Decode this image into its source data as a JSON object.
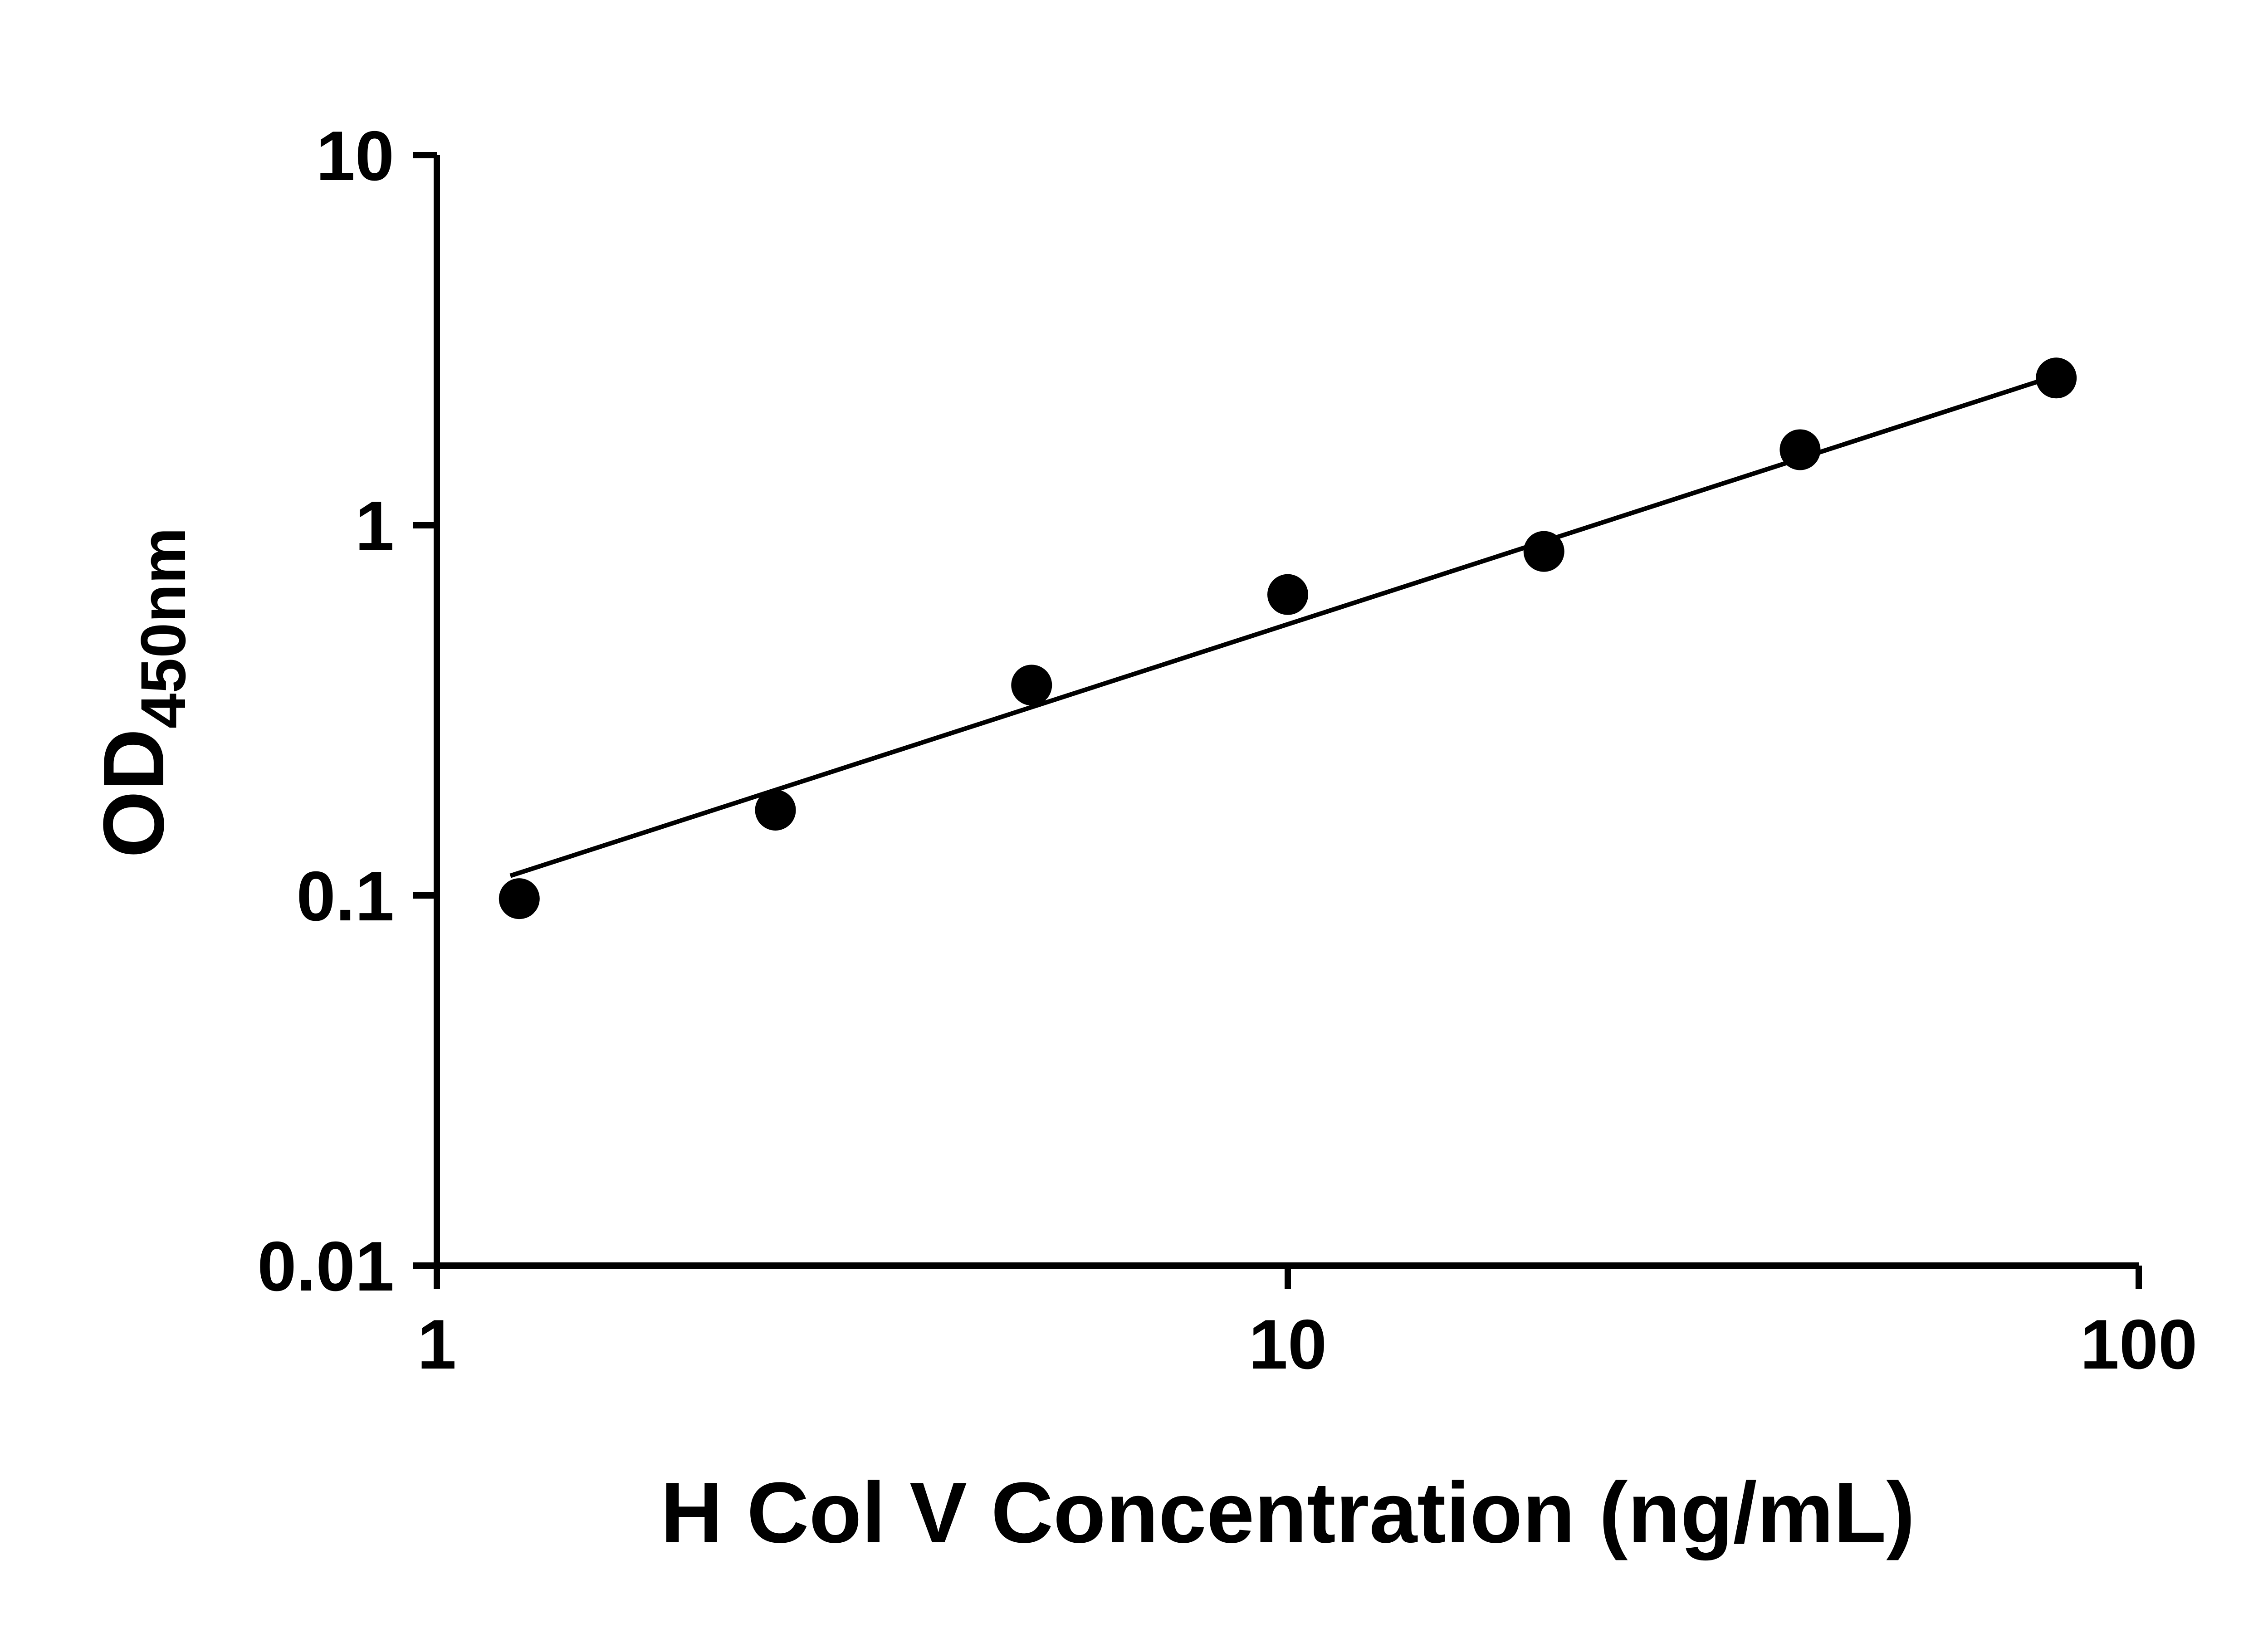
{
  "chart_data": {
    "type": "scatter",
    "title": "",
    "xlabel": "H Col V Concentration (ng/mL)",
    "ylabel_main": "OD",
    "ylabel_sub": "450nm",
    "x_scale": "log",
    "y_scale": "log",
    "xlim": [
      1,
      100
    ],
    "ylim": [
      0.01,
      10
    ],
    "x_ticks": [
      1,
      10,
      100
    ],
    "x_tick_labels": [
      "1",
      "10",
      "100"
    ],
    "y_ticks": [
      0.01,
      0.1,
      1,
      10
    ],
    "y_tick_labels": [
      "0.01",
      "0.1",
      "1",
      "10"
    ],
    "grid": false,
    "legend": "none",
    "series": [
      {
        "name": "fit-line",
        "type": "line",
        "color": "#000000",
        "x": [
          1.22,
          81
        ],
        "y": [
          0.113,
          2.56
        ]
      },
      {
        "name": "standard-points",
        "type": "scatter",
        "marker": "circle",
        "color": "#000000",
        "x": [
          1.25,
          2.5,
          5,
          10,
          20,
          40,
          80
        ],
        "y": [
          0.098,
          0.17,
          0.37,
          0.65,
          0.85,
          1.6,
          2.5
        ]
      }
    ]
  },
  "colors": {
    "axis": "#000000",
    "marker": "#000000",
    "background": "#ffffff"
  }
}
